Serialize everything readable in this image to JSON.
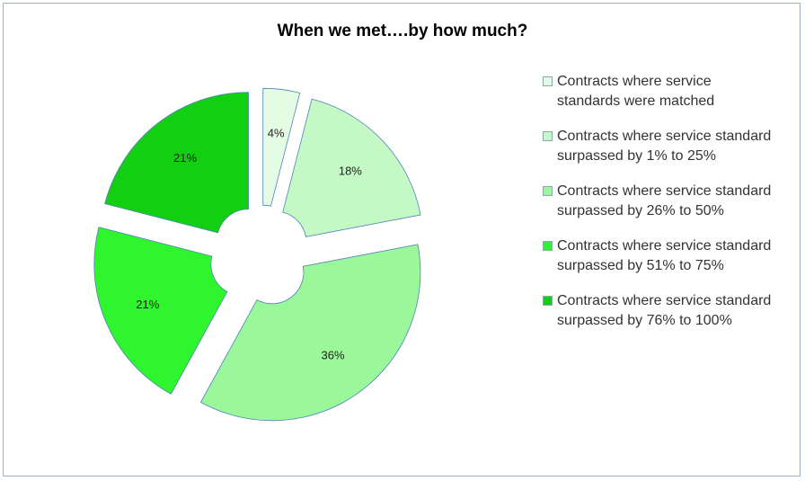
{
  "chart_data": {
    "type": "pie",
    "title": "When we met….by how much?",
    "categories": [
      "Contracts where service standards were matched",
      "Contracts where service standard surpassed by 1% to 25%",
      "Contracts where service standard surpassed by 26% to 50%",
      "Contracts where service standard surpassed by 51% to 75%",
      "Contracts where service standard surpassed by 76% to 100%"
    ],
    "values": [
      4,
      18,
      36,
      21,
      21
    ],
    "value_labels": [
      "4%",
      "18%",
      "36%",
      "21%",
      "21%"
    ],
    "colors": [
      "#e4fce4",
      "#c4f8c4",
      "#9af79a",
      "#2ef52e",
      "#12cf12"
    ],
    "legend": "right"
  }
}
